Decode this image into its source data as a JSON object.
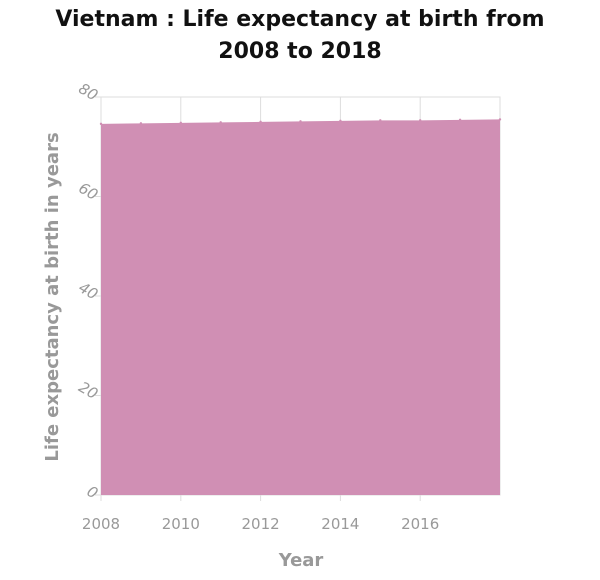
{
  "chart_data": {
    "type": "area",
    "title_lines": [
      "Vietnam : Life expectancy at birth from",
      "2008 to 2018"
    ],
    "xlabel": "Year",
    "ylabel": "Life expectancy at birth in years",
    "x": [
      2008,
      2009,
      2010,
      2011,
      2012,
      2013,
      2014,
      2015,
      2016,
      2017,
      2018
    ],
    "values": [
      74.6,
      74.7,
      74.8,
      74.9,
      75.0,
      75.1,
      75.2,
      75.3,
      75.3,
      75.4,
      75.5
    ],
    "xlim": [
      2008,
      2018
    ],
    "ylim": [
      0,
      80
    ],
    "xticks": [
      2008,
      2010,
      2012,
      2014,
      2016
    ],
    "yticks": [
      0,
      20,
      40,
      60,
      80
    ],
    "grid": true,
    "fill_color": "#d08fb4",
    "grid_color": "#dddddd",
    "axis_text_color": "#999999"
  }
}
